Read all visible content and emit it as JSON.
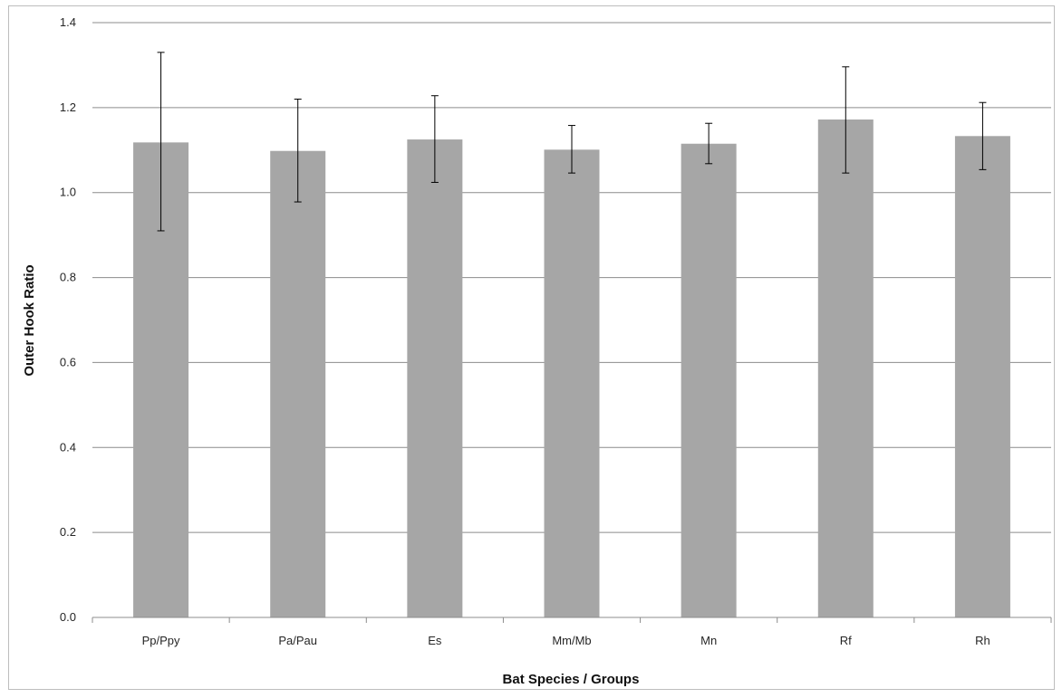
{
  "chart_data": {
    "type": "bar",
    "title": "",
    "xlabel": "Bat Species / Groups",
    "ylabel": "Outer Hook Ratio",
    "categories": [
      "Pp/Ppy",
      "Pa/Pau",
      "Es",
      "Mm/Mb",
      "Mn",
      "Rf",
      "Rh"
    ],
    "values": [
      1.118,
      1.098,
      1.125,
      1.101,
      1.115,
      1.172,
      1.133
    ],
    "error_low": [
      0.91,
      0.978,
      1.024,
      1.046,
      1.068,
      1.046,
      1.054
    ],
    "error_high": [
      1.33,
      1.22,
      1.228,
      1.158,
      1.163,
      1.296,
      1.212
    ],
    "ylim": [
      0,
      1.4
    ],
    "yticks": [
      "0.0",
      "0.2",
      "0.4",
      "0.6",
      "0.8",
      "1.0",
      "1.2",
      "1.4"
    ],
    "grid": true,
    "legend": "none",
    "bar_color": "#a6a6a6",
    "grid_color": "#8c8c8c",
    "error_bar_color": "#000000"
  }
}
